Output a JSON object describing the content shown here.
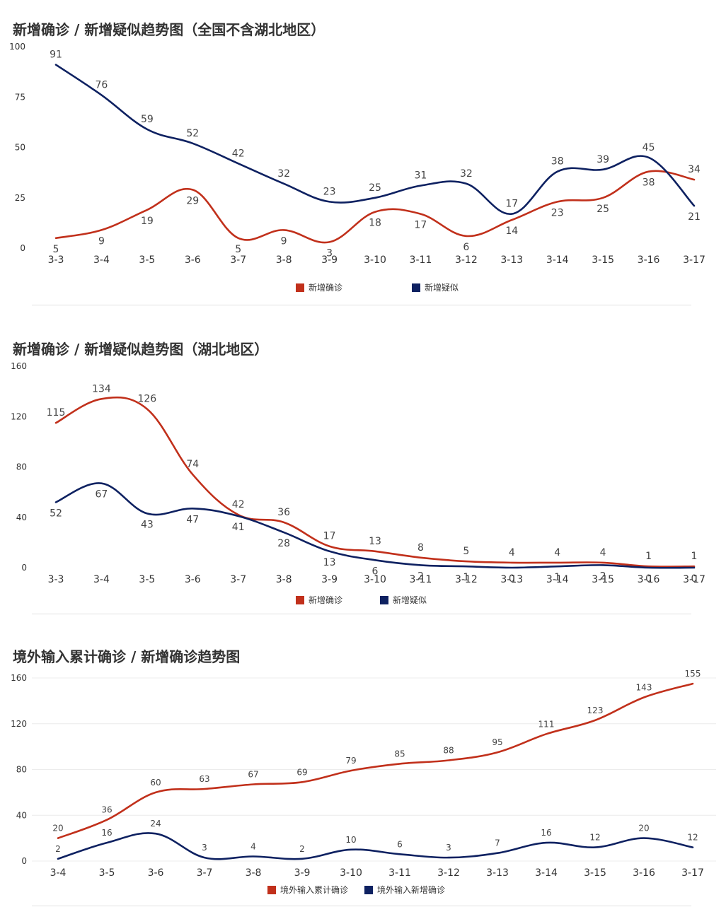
{
  "colors": {
    "red": "#c1301b",
    "navy": "#0e2161"
  },
  "chart_data": [
    {
      "type": "line",
      "title": "新增确诊 / 新增疑似趋势图（全国不含湖北地区）",
      "categories": [
        "3-3",
        "3-4",
        "3-5",
        "3-6",
        "3-7",
        "3-8",
        "3-9",
        "3-10",
        "3-11",
        "3-12",
        "3-13",
        "3-14",
        "3-15",
        "3-16",
        "3-17"
      ],
      "ylim": [
        0,
        100
      ],
      "yticks": [
        0,
        25,
        50,
        75,
        100
      ],
      "grid": false,
      "legend_position": "bottom",
      "series": [
        {
          "name": "新增确诊",
          "color": "#c1301b",
          "values": [
            5,
            9,
            19,
            29,
            5,
            9,
            3,
            18,
            17,
            6,
            14,
            23,
            25,
            38,
            34
          ]
        },
        {
          "name": "新增疑似",
          "color": "#0e2161",
          "values": [
            91,
            76,
            59,
            52,
            42,
            32,
            23,
            25,
            31,
            32,
            17,
            38,
            39,
            45,
            21
          ]
        }
      ]
    },
    {
      "type": "line",
      "title": "新增确诊 / 新增疑似趋势图（湖北地区）",
      "categories": [
        "3-3",
        "3-4",
        "3-5",
        "3-6",
        "3-7",
        "3-8",
        "3-9",
        "3-10",
        "3-11",
        "3-12",
        "3-13",
        "3-14",
        "3-15",
        "3-16",
        "3-17"
      ],
      "ylim": [
        0,
        160
      ],
      "yticks": [
        0,
        40,
        80,
        120,
        160
      ],
      "grid": false,
      "legend_position": "bottom",
      "series": [
        {
          "name": "新增确诊",
          "color": "#c1301b",
          "values": [
            115,
            134,
            126,
            74,
            42,
            36,
            17,
            13,
            8,
            5,
            4,
            4,
            4,
            1,
            1
          ]
        },
        {
          "name": "新增疑似",
          "color": "#0e2161",
          "values": [
            52,
            67,
            43,
            47,
            41,
            28,
            13,
            6,
            2,
            1,
            0,
            1,
            2,
            0,
            0
          ]
        }
      ]
    },
    {
      "type": "line",
      "title": "境外输入累计确诊 / 新增确诊趋势图",
      "categories": [
        "3-4",
        "3-5",
        "3-6",
        "3-7",
        "3-8",
        "3-9",
        "3-10",
        "3-11",
        "3-12",
        "3-13",
        "3-14",
        "3-15",
        "3-16",
        "3-17"
      ],
      "ylim": [
        0,
        160
      ],
      "yticks": [
        0,
        40,
        80,
        120,
        160
      ],
      "grid": true,
      "legend_position": "bottom",
      "series": [
        {
          "name": "境外输入累计确诊",
          "color": "#c1301b",
          "values": [
            20,
            36,
            60,
            63,
            67,
            69,
            79,
            85,
            88,
            95,
            111,
            123,
            143,
            155
          ]
        },
        {
          "name": "境外输入新增确诊",
          "color": "#0e2161",
          "values": [
            2,
            16,
            24,
            3,
            4,
            2,
            10,
            6,
            3,
            7,
            16,
            12,
            20,
            12
          ]
        }
      ]
    }
  ]
}
